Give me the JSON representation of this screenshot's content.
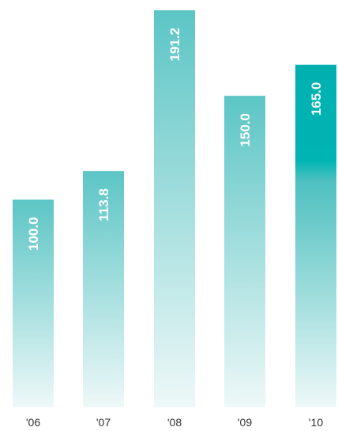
{
  "chart_data": {
    "type": "bar",
    "title": "",
    "xlabel": "",
    "ylabel": "",
    "categories": [
      "'06",
      "'07",
      "'08",
      "'09",
      "'10"
    ],
    "values": [
      100.0,
      113.8,
      191.2,
      150.0,
      165.0
    ],
    "value_labels": [
      "100.0",
      "113.8",
      "191.2",
      "150.0",
      "165.0"
    ],
    "ylim": [
      0,
      200
    ],
    "grid": false,
    "legend": "none",
    "colors": {
      "bar_top": "#5cc5c5",
      "bar_bottom": "#eef8f8",
      "highlight_top": "#00b0b0",
      "highlight_solid_end": "#00b4b4",
      "label": "#ffffff",
      "tick": "#333333"
    },
    "highlight_index": 4
  }
}
